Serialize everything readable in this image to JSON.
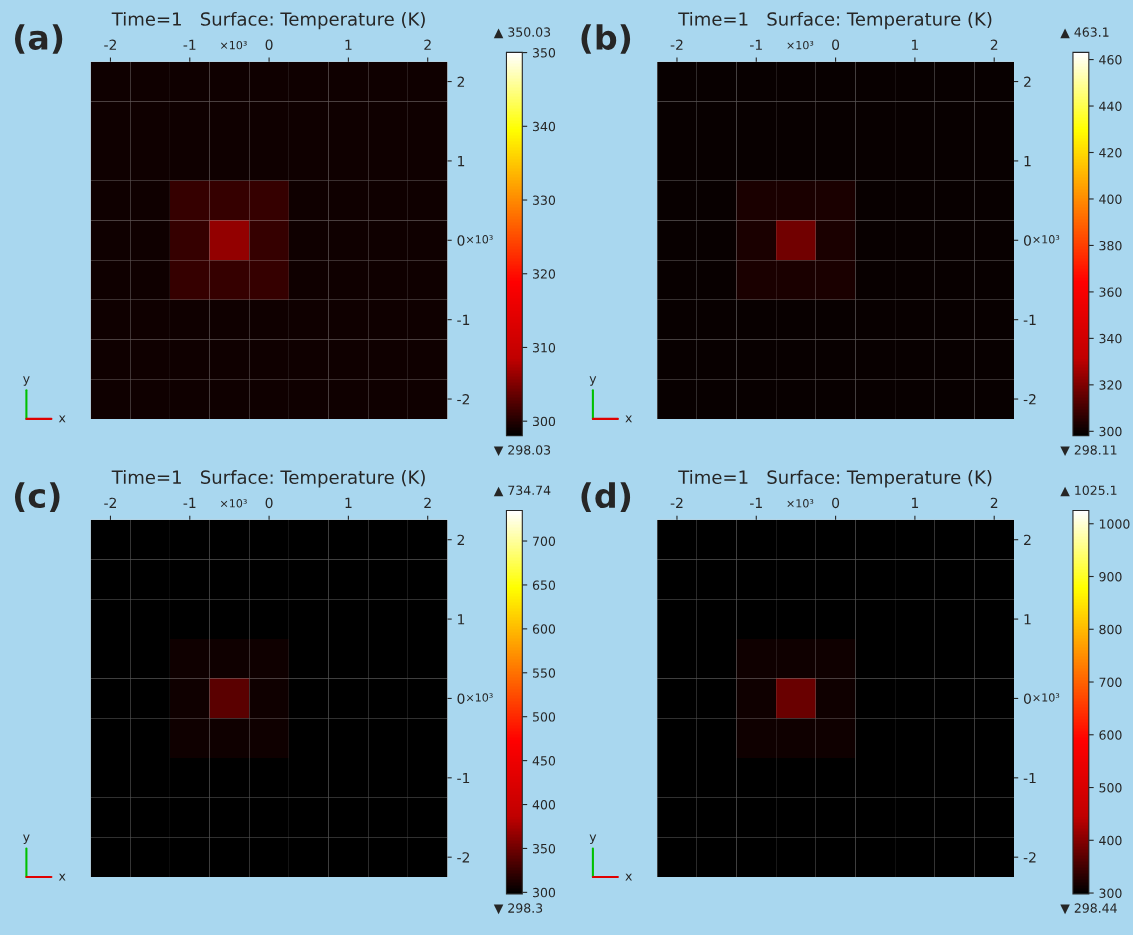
{
  "chart_data": [
    {
      "type": "heatmap",
      "title": "Time=1   Surface: Temperature (K)",
      "categories": [
        "-2",
        null,
        "-1",
        null,
        "0",
        null,
        "1",
        null,
        "2"
      ],
      "y_categories": [
        "2",
        null,
        "1",
        null,
        "0",
        null,
        "-1",
        null,
        "-2"
      ],
      "clim": [
        298.03,
        350.03
      ],
      "cticks": [
        300,
        310,
        320,
        330,
        340,
        350
      ],
      "annotations": [
        "(a)",
        "▲ 350.03",
        "▼ 298.03",
        "×10³",
        "×10³",
        "y",
        "x"
      ],
      "cells": [
        [
          299,
          299,
          299,
          299,
          299,
          299,
          299,
          299,
          299
        ],
        [
          299,
          299,
          299,
          299,
          299,
          299,
          299,
          299,
          299
        ],
        [
          299,
          299,
          299,
          299,
          299,
          299,
          299,
          299,
          299
        ],
        [
          299,
          299,
          301,
          301,
          301,
          299,
          299,
          299,
          299
        ],
        [
          299,
          299,
          301,
          306,
          301,
          299,
          299,
          299,
          299
        ],
        [
          299,
          299,
          301,
          301,
          301,
          299,
          299,
          299,
          299
        ],
        [
          299,
          299,
          299,
          299,
          299,
          299,
          299,
          299,
          299
        ],
        [
          299,
          299,
          299,
          299,
          299,
          299,
          299,
          299,
          299
        ],
        [
          299,
          299,
          299,
          299,
          299,
          299,
          299,
          299,
          299
        ]
      ]
    },
    {
      "type": "heatmap",
      "title": "Time=1   Surface: Temperature (K)",
      "categories": [
        "-2",
        null,
        "-1",
        null,
        "0",
        null,
        "1",
        null,
        "2"
      ],
      "y_categories": [
        "2",
        null,
        "1",
        null,
        "0",
        null,
        "-1",
        null,
        "-2"
      ],
      "clim": [
        298.11,
        463.1
      ],
      "cticks": [
        300,
        320,
        340,
        360,
        380,
        400,
        420,
        440,
        460
      ],
      "annotations": [
        "(b)",
        "▲ 463.1",
        "▼ 298.11",
        "×10³",
        "×10³",
        "y",
        "x"
      ],
      "cells": [
        [
          300,
          300,
          300,
          300,
          300,
          300,
          300,
          300,
          300
        ],
        [
          300,
          300,
          300,
          300,
          300,
          300,
          300,
          300,
          300
        ],
        [
          300,
          300,
          300,
          300,
          300,
          300,
          300,
          300,
          300
        ],
        [
          300,
          300,
          303,
          303,
          303,
          300,
          300,
          300,
          300
        ],
        [
          300,
          300,
          303,
          318,
          303,
          300,
          300,
          300,
          300
        ],
        [
          300,
          300,
          303,
          303,
          303,
          300,
          300,
          300,
          300
        ],
        [
          300,
          300,
          300,
          300,
          300,
          300,
          300,
          300,
          300
        ],
        [
          300,
          300,
          300,
          300,
          300,
          300,
          300,
          300,
          300
        ],
        [
          300,
          300,
          300,
          300,
          300,
          300,
          300,
          300,
          300
        ]
      ]
    },
    {
      "type": "heatmap",
      "title": "Time=1   Surface: Temperature (K)",
      "categories": [
        "-2",
        null,
        "-1",
        null,
        "0",
        null,
        "1",
        null,
        "2"
      ],
      "y_categories": [
        "2",
        null,
        "1",
        null,
        "0",
        null,
        "-1",
        null,
        "-2"
      ],
      "clim": [
        298.3,
        734.74
      ],
      "cticks": [
        300,
        350,
        400,
        450,
        500,
        550,
        600,
        650,
        700
      ],
      "annotations": [
        "(c)",
        "▲ 734.74",
        "▼ 298.3",
        "×10³",
        "×10³",
        "y",
        "x"
      ],
      "cells": [
        [
          300,
          300,
          300,
          300,
          300,
          300,
          300,
          300,
          300
        ],
        [
          300,
          300,
          300,
          300,
          300,
          300,
          300,
          300,
          300
        ],
        [
          300,
          300,
          300,
          300,
          300,
          300,
          300,
          300,
          300
        ],
        [
          300,
          300,
          306,
          306,
          306,
          300,
          300,
          300,
          300
        ],
        [
          300,
          300,
          306,
          340,
          306,
          300,
          300,
          300,
          300
        ],
        [
          300,
          300,
          306,
          306,
          306,
          300,
          300,
          300,
          300
        ],
        [
          300,
          300,
          300,
          300,
          300,
          300,
          300,
          300,
          300
        ],
        [
          300,
          300,
          300,
          300,
          300,
          300,
          300,
          300,
          300
        ],
        [
          300,
          300,
          300,
          300,
          300,
          300,
          300,
          300,
          300
        ]
      ]
    },
    {
      "type": "heatmap",
      "title": "Time=1   Surface: Temperature (K)",
      "categories": [
        "-2",
        null,
        "-1",
        null,
        "0",
        null,
        "1",
        null,
        "2"
      ],
      "y_categories": [
        "2",
        null,
        "1",
        null,
        "0",
        null,
        "-1",
        null,
        "-2"
      ],
      "clim": [
        298.44,
        1025.1
      ],
      "cticks": [
        300,
        400,
        500,
        600,
        700,
        800,
        900,
        1000
      ],
      "annotations": [
        "(d)",
        "▲ 1025.1",
        "▼ 298.44",
        "×10³",
        "×10³",
        "y",
        "x"
      ],
      "cells": [
        [
          301,
          301,
          301,
          301,
          301,
          301,
          301,
          301,
          301
        ],
        [
          301,
          301,
          301,
          301,
          301,
          301,
          301,
          301,
          301
        ],
        [
          301,
          301,
          301,
          301,
          301,
          301,
          301,
          301,
          301
        ],
        [
          301,
          301,
          312,
          312,
          312,
          301,
          301,
          301,
          301
        ],
        [
          301,
          301,
          312,
          380,
          312,
          301,
          301,
          301,
          301
        ],
        [
          301,
          301,
          312,
          312,
          312,
          301,
          301,
          301,
          301
        ],
        [
          301,
          301,
          301,
          301,
          301,
          301,
          301,
          301,
          301
        ],
        [
          301,
          301,
          301,
          301,
          301,
          301,
          301,
          301,
          301
        ],
        [
          301,
          301,
          301,
          301,
          301,
          301,
          301,
          301,
          301
        ]
      ]
    }
  ]
}
